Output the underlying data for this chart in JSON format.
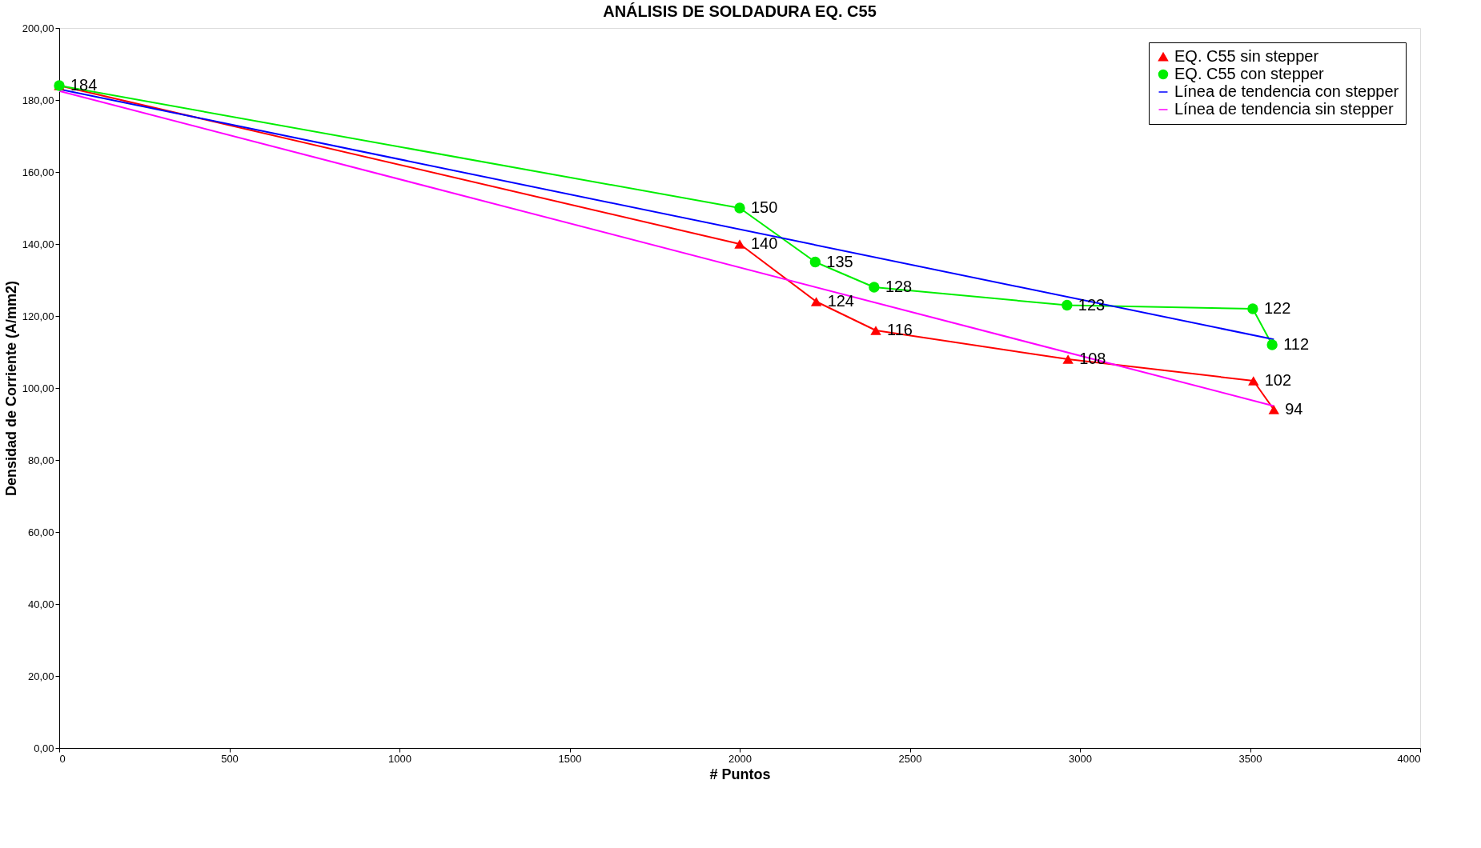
{
  "chart_data": {
    "type": "line",
    "title": "ANÁLISIS DE SOLDADURA EQ. C55",
    "xlabel": "# Puntos",
    "ylabel": "Densidad de Corriente (A/mm2)",
    "xlim": [
      0,
      4000
    ],
    "xticks": [
      0,
      500,
      1000,
      1500,
      2000,
      2500,
      3000,
      3500,
      4000
    ],
    "ylim": [
      0,
      200
    ],
    "yticks": [
      {
        "value": 0,
        "label": "0,00"
      },
      {
        "value": 20,
        "label": "20,00"
      },
      {
        "value": 40,
        "label": "40,00"
      },
      {
        "value": 60,
        "label": "60,00"
      },
      {
        "value": 80,
        "label": "80,00"
      },
      {
        "value": 100,
        "label": "100,00"
      },
      {
        "value": 120,
        "label": "120,00"
      },
      {
        "value": 140,
        "label": "140,00"
      },
      {
        "value": 160,
        "label": "160,00"
      },
      {
        "value": 180,
        "label": "180,00"
      },
      {
        "value": 200,
        "label": "200,00"
      }
    ],
    "grid": false,
    "legend": "top right",
    "series": [
      {
        "name": "EQ. C55 sin stepper",
        "color": "#ff0000",
        "marker": "triangle",
        "x": [
          0,
          2000,
          2225,
          2400,
          2965,
          3510,
          3570
        ],
        "values": [
          184,
          140,
          124,
          116,
          108,
          102,
          94
        ],
        "value_labels": [
          null,
          "140",
          "124",
          "116",
          "108",
          "102",
          "94"
        ]
      },
      {
        "name": "EQ. C55 con stepper",
        "color": "#00ee00",
        "marker": "circle",
        "x": [
          0,
          2000,
          2222,
          2395,
          2962,
          3508,
          3565
        ],
        "values": [
          184,
          150,
          135,
          128,
          123,
          122,
          112
        ],
        "value_labels": [
          "184",
          "150",
          "135",
          "128",
          "123",
          "122",
          "112"
        ]
      },
      {
        "name": "Línea de tendencia con stepper",
        "color": "#0000ff",
        "marker": "none",
        "x": [
          0,
          3570
        ],
        "values": [
          183,
          113.5
        ]
      },
      {
        "name": "Línea de tendencia sin stepper",
        "color": "#ff00ff",
        "marker": "none",
        "x": [
          0,
          3570
        ],
        "values": [
          182.5,
          95
        ]
      }
    ]
  }
}
